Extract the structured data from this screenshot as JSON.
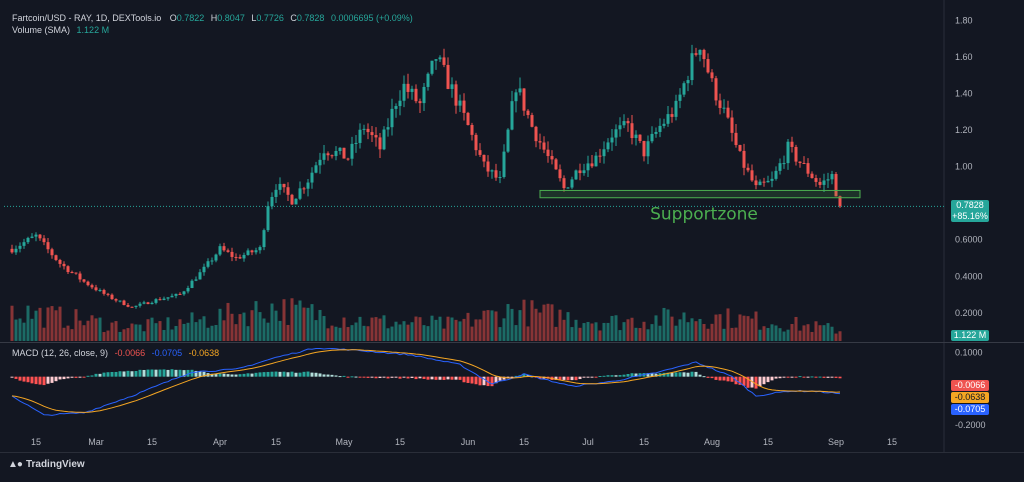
{
  "header": {
    "symbol": "Fartcoin/USD - RAY, 1D, DEXTools.io",
    "o_label": "O",
    "o_value": "0.7822",
    "h_label": "H",
    "h_value": "0.8047",
    "l_label": "L",
    "l_value": "0.7726",
    "c_label": "C",
    "c_value": "0.7828",
    "change": "0.0006695 (+0.09%)"
  },
  "volume_legend": {
    "label": "Volume (SMA)",
    "value": "1.122 M"
  },
  "macd_legend": {
    "label": "MACD (12, 26, close, 9)",
    "hist": "-0.0066",
    "macd": "-0.0705",
    "signal": "-0.0638"
  },
  "price_axis": [
    "1.80",
    "1.60",
    "1.40",
    "1.20",
    "1.00",
    "0.6000",
    "0.4000",
    "0.2000"
  ],
  "macd_axis": [
    "0.1000",
    "-0.2000"
  ],
  "price_tag": {
    "price": "0.7828",
    "change": "+85.16%"
  },
  "volume_tag": "1.122 M",
  "macd_tags": {
    "hist": "-0.0066",
    "signal": "-0.0638",
    "macd": "-0.0705"
  },
  "annotation": "Supportzone",
  "branding": "TradingView",
  "colors": {
    "up": "#26a69a",
    "down": "#ef5350",
    "zone": "#4caf50",
    "macd": "#2962ff",
    "signal": "#f5a623",
    "bg": "#131722"
  },
  "chart_data": {
    "type": "candlestick",
    "title": "Fartcoin/USD - RAY, 1D, DEXTools.io",
    "x_ticks": [
      "15",
      "Mar",
      "15",
      "Apr",
      "15",
      "May",
      "15",
      "Jun",
      "15",
      "Jul",
      "15",
      "Aug",
      "15",
      "Sep",
      "15"
    ],
    "ylim": [
      0.04,
      1.88
    ],
    "price_anchors": [
      {
        "d": 0,
        "p": 0.55
      },
      {
        "d": 6,
        "p": 0.62
      },
      {
        "d": 12,
        "p": 0.47
      },
      {
        "d": 18,
        "p": 0.37
      },
      {
        "d": 24,
        "p": 0.29
      },
      {
        "d": 30,
        "p": 0.23
      },
      {
        "d": 36,
        "p": 0.27
      },
      {
        "d": 42,
        "p": 0.3
      },
      {
        "d": 48,
        "p": 0.44
      },
      {
        "d": 52,
        "p": 0.55
      },
      {
        "d": 56,
        "p": 0.5
      },
      {
        "d": 62,
        "p": 0.55
      },
      {
        "d": 64,
        "p": 0.8
      },
      {
        "d": 66,
        "p": 0.9
      },
      {
        "d": 70,
        "p": 0.82
      },
      {
        "d": 74,
        "p": 0.93
      },
      {
        "d": 78,
        "p": 1.1
      },
      {
        "d": 84,
        "p": 1.05
      },
      {
        "d": 88,
        "p": 1.22
      },
      {
        "d": 92,
        "p": 1.1
      },
      {
        "d": 96,
        "p": 1.36
      },
      {
        "d": 98,
        "p": 1.44
      },
      {
        "d": 102,
        "p": 1.34
      },
      {
        "d": 106,
        "p": 1.6
      },
      {
        "d": 110,
        "p": 1.42
      },
      {
        "d": 114,
        "p": 1.22
      },
      {
        "d": 118,
        "p": 1.0
      },
      {
        "d": 122,
        "p": 0.92
      },
      {
        "d": 126,
        "p": 1.45
      },
      {
        "d": 130,
        "p": 1.22
      },
      {
        "d": 134,
        "p": 1.05
      },
      {
        "d": 138,
        "p": 0.88
      },
      {
        "d": 142,
        "p": 1.0
      },
      {
        "d": 146,
        "p": 1.05
      },
      {
        "d": 150,
        "p": 1.18
      },
      {
        "d": 154,
        "p": 1.22
      },
      {
        "d": 158,
        "p": 1.08
      },
      {
        "d": 162,
        "p": 1.22
      },
      {
        "d": 166,
        "p": 1.32
      },
      {
        "d": 170,
        "p": 1.58
      },
      {
        "d": 172,
        "p": 1.68
      },
      {
        "d": 175,
        "p": 1.45
      },
      {
        "d": 178,
        "p": 1.3
      },
      {
        "d": 182,
        "p": 1.05
      },
      {
        "d": 186,
        "p": 0.88
      },
      {
        "d": 190,
        "p": 0.92
      },
      {
        "d": 194,
        "p": 1.1
      },
      {
        "d": 198,
        "p": 1.0
      },
      {
        "d": 202,
        "p": 0.9
      },
      {
        "d": 205,
        "p": 0.95
      },
      {
        "d": 207,
        "p": 0.78
      }
    ],
    "support_zone": {
      "low": 0.83,
      "high": 0.87,
      "start_day": 132,
      "end_day": 212
    },
    "current_price": 0.7828,
    "volume_ylim": [
      0,
      1
    ],
    "volume_anchors": [
      {
        "d": 0,
        "v": 0.55
      },
      {
        "d": 30,
        "v": 0.25
      },
      {
        "d": 45,
        "v": 0.35
      },
      {
        "d": 65,
        "v": 0.6
      },
      {
        "d": 90,
        "v": 0.35
      },
      {
        "d": 110,
        "v": 0.3
      },
      {
        "d": 125,
        "v": 0.55
      },
      {
        "d": 150,
        "v": 0.35
      },
      {
        "d": 172,
        "v": 0.45
      },
      {
        "d": 190,
        "v": 0.35
      },
      {
        "d": 207,
        "v": 0.2
      }
    ],
    "macd_ylim": [
      -0.23,
      0.14
    ],
    "macd_anchors": [
      {
        "d": 0,
        "m": -0.08
      },
      {
        "d": 8,
        "m": -0.16
      },
      {
        "d": 18,
        "m": -0.15
      },
      {
        "d": 30,
        "m": -0.08
      },
      {
        "d": 45,
        "m": 0.02
      },
      {
        "d": 56,
        "m": 0.03
      },
      {
        "d": 66,
        "m": 0.08
      },
      {
        "d": 76,
        "m": 0.12
      },
      {
        "d": 86,
        "m": 0.11
      },
      {
        "d": 100,
        "m": 0.09
      },
      {
        "d": 112,
        "m": 0.05
      },
      {
        "d": 120,
        "m": -0.03
      },
      {
        "d": 128,
        "m": 0.01
      },
      {
        "d": 140,
        "m": -0.04
      },
      {
        "d": 150,
        "m": -0.02
      },
      {
        "d": 162,
        "m": 0.02
      },
      {
        "d": 171,
        "m": 0.06
      },
      {
        "d": 180,
        "m": 0.0
      },
      {
        "d": 186,
        "m": -0.08
      },
      {
        "d": 194,
        "m": -0.06
      },
      {
        "d": 200,
        "m": -0.06
      },
      {
        "d": 207,
        "m": -0.0705
      }
    ],
    "macd_signal_final": -0.0638,
    "macd_hist_final": -0.0066
  }
}
